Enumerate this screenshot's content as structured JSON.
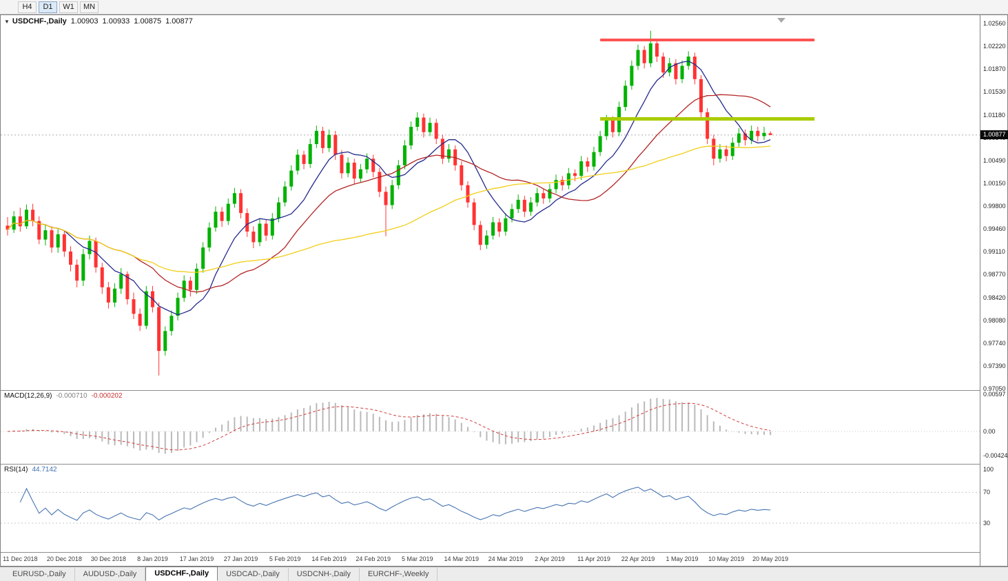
{
  "toolbar": {
    "timeframes": [
      {
        "label": "H4",
        "active": false
      },
      {
        "label": "D1",
        "active": true
      },
      {
        "label": "W1",
        "active": false
      },
      {
        "label": "MN",
        "active": false
      }
    ]
  },
  "chart": {
    "dropdown_glyph": "▼",
    "symbol_label": "USDCHF-,Daily",
    "ohlc": {
      "open": "1.00903",
      "high": "1.00933",
      "low": "1.00875",
      "close": "1.00877"
    },
    "price_badge": "1.00877"
  },
  "macd": {
    "label": "MACD(12,26,9)",
    "value_main": "-0.000710",
    "value_signal": "-0.000202",
    "scale": [
      "0.00597",
      "0.00",
      "-0.004243"
    ]
  },
  "rsi": {
    "label": "RSI(14)",
    "value": "44.7142",
    "scale": [
      "100",
      "70",
      "30"
    ]
  },
  "tabs": [
    {
      "label": "EURUSD-,Daily",
      "active": false
    },
    {
      "label": "AUDUSD-,Daily",
      "active": false
    },
    {
      "label": "USDCHF-,Daily",
      "active": true
    },
    {
      "label": "USDCAD-,Daily",
      "active": false
    },
    {
      "label": "USDCNH-,Daily",
      "active": false
    },
    {
      "label": "EURCHF-,Weekly",
      "active": false
    }
  ],
  "chart_data": {
    "type": "candlestick",
    "symbol": "USDCHF",
    "timeframe": "Daily",
    "price_range": {
      "top": 1.0256,
      "bottom": 0.9705
    },
    "price_axis_labels": [
      "1.02560",
      "1.02220",
      "1.01870",
      "1.01530",
      "1.01180",
      "1.00840",
      "1.00490",
      "1.00150",
      "0.99800",
      "0.99460",
      "0.99110",
      "0.98770",
      "0.98420",
      "0.98080",
      "0.97740",
      "0.97390",
      "0.97050"
    ],
    "x_labels": [
      "11 Dec 2018",
      "20 Dec 2018",
      "30 Dec 2018",
      "8 Jan 2019",
      "17 Jan 2019",
      "27 Jan 2019",
      "5 Feb 2019",
      "14 Feb 2019",
      "24 Feb 2019",
      "5 Mar 2019",
      "14 Mar 2019",
      "24 Mar 2019",
      "2 Apr 2019",
      "11 Apr 2019",
      "22 Apr 2019",
      "1 May 2019",
      "10 May 2019",
      "20 May 2019"
    ],
    "label_first_bar": 2,
    "label_step": 7,
    "colors": {
      "bull": "#00B200",
      "bear": "#FF3333"
    },
    "indicators": {
      "macd": {
        "fast": 12,
        "slow": 26,
        "signal": 9
      },
      "rsi": {
        "period": 14
      }
    },
    "overlays": {
      "current_price": 1.00877,
      "resistance_line": {
        "price": 1.0231,
        "from_bar": 94,
        "to_bar": 128,
        "color": "#FF5252"
      },
      "support_line": {
        "price": 1.0112,
        "from_bar": 94,
        "to_bar": 128,
        "color": "#AACC00"
      },
      "moving_averages": [
        {
          "period": 9,
          "color": "#23298C"
        },
        {
          "period": 21,
          "color": "#B22222"
        },
        {
          "period": 50,
          "color": "#F2CE16"
        }
      ]
    },
    "candles": [
      [
        0.9951,
        0.9964,
        0.9936,
        0.9945
      ],
      [
        0.9945,
        0.9973,
        0.994,
        0.9965
      ],
      [
        0.9965,
        0.9978,
        0.9942,
        0.995
      ],
      [
        0.995,
        0.9983,
        0.9946,
        0.9975
      ],
      [
        0.9975,
        0.9984,
        0.995,
        0.9958
      ],
      [
        0.9958,
        0.9965,
        0.9923,
        0.993
      ],
      [
        0.993,
        0.9952,
        0.9921,
        0.9944
      ],
      [
        0.9944,
        0.995,
        0.991,
        0.9918
      ],
      [
        0.9918,
        0.9946,
        0.991,
        0.9938
      ],
      [
        0.9938,
        0.9943,
        0.9904,
        0.9912
      ],
      [
        0.9912,
        0.992,
        0.9882,
        0.9892
      ],
      [
        0.9892,
        0.99,
        0.9858,
        0.9868
      ],
      [
        0.9868,
        0.9916,
        0.986,
        0.9908
      ],
      [
        0.9908,
        0.9936,
        0.99,
        0.9928
      ],
      [
        0.9928,
        0.9933,
        0.988,
        0.9888
      ],
      [
        0.9888,
        0.9895,
        0.9848,
        0.9858
      ],
      [
        0.9858,
        0.9866,
        0.9826,
        0.9835
      ],
      [
        0.9835,
        0.9864,
        0.9828,
        0.9856
      ],
      [
        0.9856,
        0.9887,
        0.9848,
        0.9878
      ],
      [
        0.9878,
        0.9882,
        0.9832,
        0.984
      ],
      [
        0.984,
        0.985,
        0.981,
        0.9818
      ],
      [
        0.9818,
        0.9826,
        0.9792,
        0.98
      ],
      [
        0.98,
        0.986,
        0.9795,
        0.9852
      ],
      [
        0.9852,
        0.986,
        0.982,
        0.9828
      ],
      [
        0.9828,
        0.9835,
        0.9725,
        0.9762
      ],
      [
        0.9762,
        0.9799,
        0.9755,
        0.9792
      ],
      [
        0.9792,
        0.9823,
        0.9785,
        0.9815
      ],
      [
        0.9815,
        0.985,
        0.9808,
        0.9842
      ],
      [
        0.9842,
        0.9876,
        0.9836,
        0.9868
      ],
      [
        0.9868,
        0.9874,
        0.9844,
        0.9854
      ],
      [
        0.9854,
        0.9894,
        0.9848,
        0.9886
      ],
      [
        0.9886,
        0.9926,
        0.988,
        0.9918
      ],
      [
        0.9918,
        0.9956,
        0.9912,
        0.9948
      ],
      [
        0.9948,
        0.998,
        0.9942,
        0.9972
      ],
      [
        0.9972,
        0.9979,
        0.9949,
        0.9958
      ],
      [
        0.9958,
        0.9992,
        0.9952,
        0.9984
      ],
      [
        0.9984,
        1.0008,
        0.9978,
        1.0
      ],
      [
        1.0,
        1.0006,
        0.9962,
        0.997
      ],
      [
        0.997,
        0.9977,
        0.9934,
        0.9942
      ],
      [
        0.9942,
        0.995,
        0.9917,
        0.9926
      ],
      [
        0.9926,
        0.9962,
        0.992,
        0.9954
      ],
      [
        0.9954,
        0.996,
        0.9928,
        0.9936
      ],
      [
        0.9936,
        0.997,
        0.993,
        0.9962
      ],
      [
        0.9962,
        0.9994,
        0.9956,
        0.9986
      ],
      [
        0.9986,
        1.0018,
        0.998,
        1.001
      ],
      [
        1.001,
        1.0042,
        1.0004,
        1.0034
      ],
      [
        1.0034,
        1.0066,
        1.0028,
        1.0058
      ],
      [
        1.0058,
        1.0064,
        1.0036,
        1.0044
      ],
      [
        1.0044,
        1.0082,
        1.0038,
        1.0074
      ],
      [
        1.0074,
        1.0102,
        1.0068,
        1.0094
      ],
      [
        1.0094,
        1.01,
        1.006,
        1.0068
      ],
      [
        1.0068,
        1.0096,
        1.0062,
        1.0088
      ],
      [
        1.0088,
        1.0094,
        1.005,
        1.0058
      ],
      [
        1.0058,
        1.0065,
        1.0022,
        1.003
      ],
      [
        1.003,
        1.0054,
        1.0024,
        1.0046
      ],
      [
        1.0046,
        1.0052,
        1.0014,
        1.0022
      ],
      [
        1.0022,
        1.0044,
        1.0016,
        1.0036
      ],
      [
        1.0036,
        1.006,
        1.003,
        1.0052
      ],
      [
        1.0052,
        1.0058,
        1.0024,
        1.0032
      ],
      [
        1.0032,
        1.0038,
        0.9994,
        1.0002
      ],
      [
        1.0002,
        1.001,
        0.9935,
        0.9982
      ],
      [
        0.9982,
        1.002,
        0.9976,
        1.0012
      ],
      [
        1.0012,
        1.005,
        1.0006,
        1.0042
      ],
      [
        1.0042,
        1.008,
        1.0036,
        1.0072
      ],
      [
        1.0072,
        1.0108,
        1.0066,
        1.01
      ],
      [
        1.01,
        1.0122,
        1.0094,
        1.0114
      ],
      [
        1.0114,
        1.012,
        1.0084,
        1.0092
      ],
      [
        1.0092,
        1.0114,
        1.0086,
        1.0106
      ],
      [
        1.0106,
        1.0112,
        1.0074,
        1.0082
      ],
      [
        1.0082,
        1.0088,
        1.0044,
        1.0052
      ],
      [
        1.0052,
        1.0074,
        1.0046,
        1.0066
      ],
      [
        1.0066,
        1.0072,
        1.0034,
        1.0042
      ],
      [
        1.0042,
        1.0048,
        1.0004,
        1.0012
      ],
      [
        1.0012,
        1.0018,
        0.9978,
        0.9986
      ],
      [
        0.9986,
        0.9992,
        0.9944,
        0.9952
      ],
      [
        0.9952,
        0.9958,
        0.9914,
        0.9922
      ],
      [
        0.9922,
        0.9944,
        0.9916,
        0.9936
      ],
      [
        0.9936,
        0.9964,
        0.993,
        0.9956
      ],
      [
        0.9956,
        0.9962,
        0.9934,
        0.9942
      ],
      [
        0.9942,
        0.997,
        0.9936,
        0.9962
      ],
      [
        0.9962,
        0.9984,
        0.9956,
        0.9976
      ],
      [
        0.9976,
        0.9998,
        0.997,
        0.999
      ],
      [
        0.999,
        0.9996,
        0.9964,
        0.9972
      ],
      [
        0.9972,
        0.9994,
        0.9966,
        0.9986
      ],
      [
        0.9986,
        1.0008,
        0.998,
        1.0
      ],
      [
        1.0,
        1.0006,
        0.9984,
        0.9992
      ],
      [
        0.9992,
        1.0014,
        0.9986,
        1.0006
      ],
      [
        1.0006,
        1.0028,
        1.0,
        1.002
      ],
      [
        1.002,
        1.0026,
        1.0004,
        1.0012
      ],
      [
        1.0012,
        1.0038,
        1.0006,
        1.003
      ],
      [
        1.003,
        1.0036,
        1.0018,
        1.0026
      ],
      [
        1.0026,
        1.0056,
        1.002,
        1.0048
      ],
      [
        1.0048,
        1.0054,
        1.0032,
        1.004
      ],
      [
        1.004,
        1.007,
        1.0034,
        1.0062
      ],
      [
        1.0062,
        1.0094,
        1.0056,
        1.0086
      ],
      [
        1.0086,
        1.0118,
        1.008,
        1.011
      ],
      [
        1.011,
        1.0116,
        1.0084,
        1.0092
      ],
      [
        1.0092,
        1.0138,
        1.0086,
        1.013
      ],
      [
        1.013,
        1.017,
        1.0124,
        1.0162
      ],
      [
        1.0162,
        1.02,
        1.0156,
        1.0192
      ],
      [
        1.0192,
        1.0224,
        1.0186,
        1.0216
      ],
      [
        1.0216,
        1.0222,
        1.0188,
        1.0196
      ],
      [
        1.0196,
        1.0245,
        1.019,
        1.0226
      ],
      [
        1.0226,
        1.0232,
        1.0198,
        1.0206
      ],
      [
        1.0206,
        1.0212,
        1.0174,
        1.0182
      ],
      [
        1.0182,
        1.0204,
        1.0176,
        1.0196
      ],
      [
        1.0196,
        1.0202,
        1.0164,
        1.0172
      ],
      [
        1.0172,
        1.02,
        1.0166,
        1.0192
      ],
      [
        1.0192,
        1.0214,
        1.0186,
        1.0206
      ],
      [
        1.0206,
        1.0212,
        1.0164,
        1.0172
      ],
      [
        1.0172,
        1.0178,
        1.0114,
        1.0122
      ],
      [
        1.0122,
        1.0128,
        1.0074,
        1.0082
      ],
      [
        1.0082,
        1.0088,
        1.0042,
        1.0052
      ],
      [
        1.0052,
        1.0074,
        1.0046,
        1.0066
      ],
      [
        1.0066,
        1.0072,
        1.0048,
        1.0056
      ],
      [
        1.0056,
        1.0084,
        1.005,
        1.0076
      ],
      [
        1.0076,
        1.0098,
        1.007,
        1.009
      ],
      [
        1.009,
        1.0096,
        1.0072,
        1.008
      ],
      [
        1.008,
        1.0102,
        1.0074,
        1.0094
      ],
      [
        1.0094,
        1.01,
        1.0078,
        1.0086
      ],
      [
        1.0086,
        1.01,
        1.008,
        1.0091
      ],
      [
        1.00903,
        1.00933,
        1.00875,
        1.00877
      ]
    ]
  }
}
